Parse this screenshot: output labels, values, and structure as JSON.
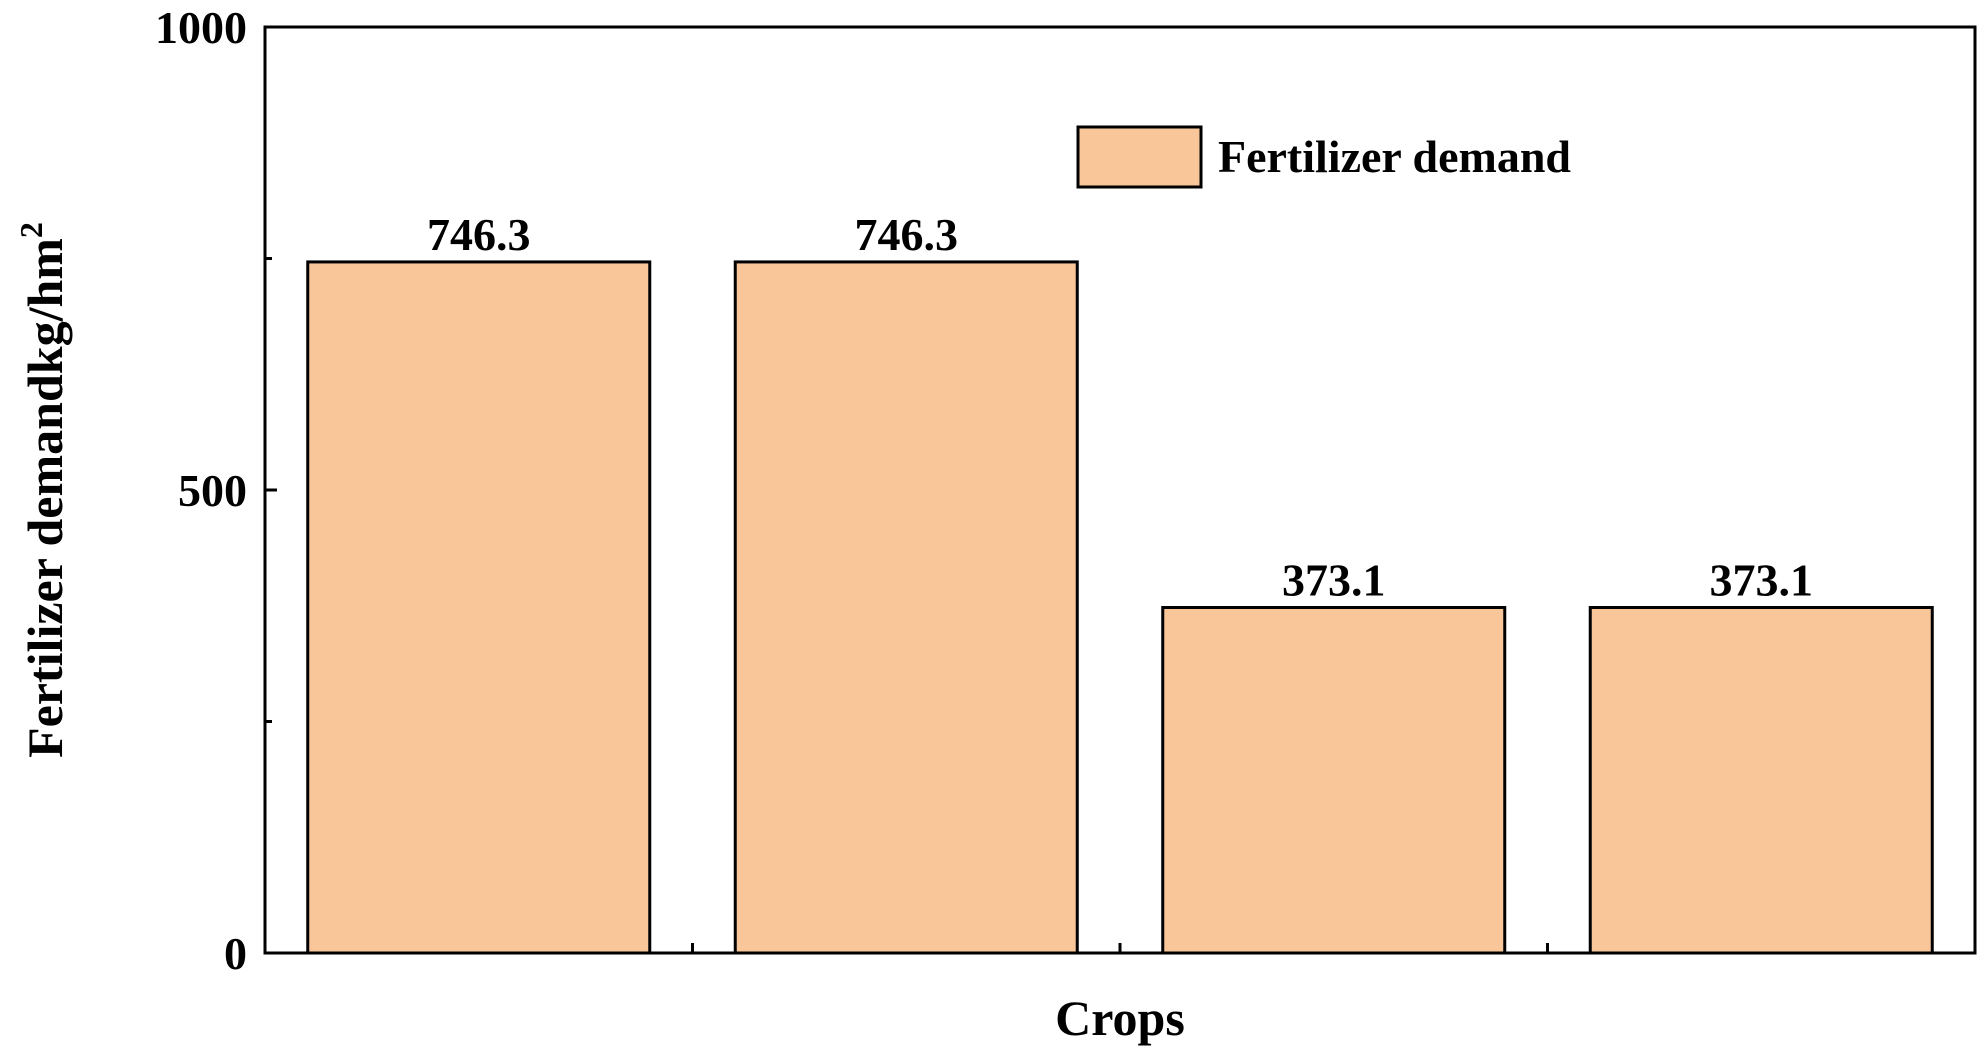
{
  "chart_data": {
    "type": "bar",
    "title": "",
    "xlabel": "Crops",
    "ylabel": "Fertilizer demandkg/hm",
    "ylabel_superscript": "2",
    "categories": [
      "",
      "",
      "",
      ""
    ],
    "series": [
      {
        "name": "Fertilizer demand",
        "values": [
          746.3,
          746.3,
          373.1,
          373.1
        ],
        "color": "#F9C699"
      }
    ],
    "data_labels": [
      "746.3",
      "746.3",
      "373.1",
      "373.1"
    ],
    "ylim": [
      0,
      1000
    ],
    "yticks": [
      0,
      500,
      1000
    ],
    "yticks_minor": [
      250,
      750
    ],
    "grid": false,
    "legend_position": "top-right"
  }
}
